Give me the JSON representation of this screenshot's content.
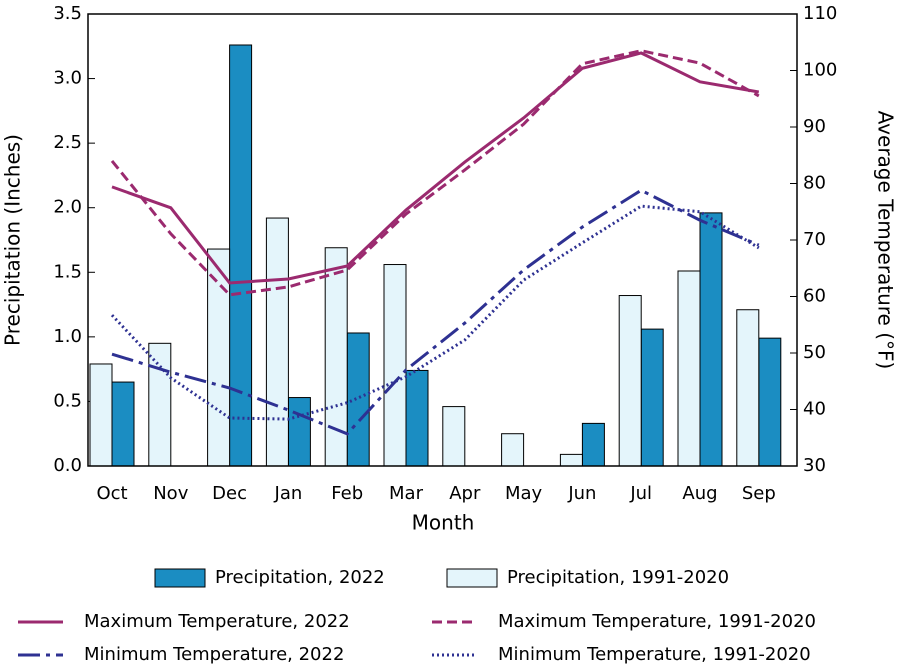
{
  "chart_data": {
    "type": "bar_line",
    "categories": [
      "Oct",
      "Nov",
      "Dec",
      "Jan",
      "Feb",
      "Mar",
      "Apr",
      "May",
      "Jun",
      "Jul",
      "Aug",
      "Sep"
    ],
    "xlabel": "Month",
    "ylabel": "Precipitation (Inches)",
    "y2label": "Average Temperature (°F)",
    "ylim": [
      0,
      3.5
    ],
    "yticks": [
      {
        "value": 0,
        "label": "0.0"
      },
      0.5,
      {
        "value": 1,
        "label": "1.0"
      },
      1.5,
      {
        "value": 2,
        "label": "2.0"
      },
      2.5,
      {
        "value": 3,
        "label": "3.0"
      },
      3.5
    ],
    "y2lim": [
      30,
      110
    ],
    "y2ticks": [
      30,
      40,
      50,
      60,
      70,
      80,
      90,
      100,
      110
    ],
    "series": [
      {
        "name": "Precipitation, 2022",
        "kind": "bar",
        "color": "#1b8dc2",
        "values": [
          0.65,
          0,
          3.26,
          0.53,
          1.03,
          0.74,
          0,
          0,
          0.33,
          1.06,
          1.96,
          0.99
        ]
      },
      {
        "name": "Precipitation, 1991-2020",
        "kind": "bar",
        "color": "#e4f5fb",
        "values": [
          0.79,
          0.95,
          1.68,
          1.92,
          1.69,
          1.56,
          0.46,
          0.25,
          0.09,
          1.32,
          1.51,
          1.21
        ]
      },
      {
        "name": "Maximum Temperature, 2022",
        "kind": "line",
        "axis": "y2",
        "dash": "solid",
        "color": "#9b2a6f",
        "values": [
          79.4,
          75.7,
          62.4,
          63.1,
          65.4,
          75.3,
          83.8,
          91.6,
          100.4,
          103.1,
          98.0,
          96.2
        ]
      },
      {
        "name": "Maximum Temperature, 1991-2020",
        "kind": "line",
        "axis": "y2",
        "dash": "dashed",
        "color": "#9b2a6f",
        "values": [
          84.0,
          71.1,
          60.3,
          61.7,
          64.7,
          74.6,
          82.4,
          90.5,
          101.2,
          103.5,
          101.3,
          95.5
        ]
      },
      {
        "name": "Minimum Temperature, 2022",
        "kind": "line",
        "axis": "y2",
        "dash": "dashdot",
        "color": "#2e3192",
        "values": [
          49.8,
          46.6,
          43.8,
          39.9,
          35.7,
          47.0,
          55.3,
          64.7,
          72.3,
          78.8,
          73.5,
          69.1
        ]
      },
      {
        "name": "Minimum Temperature, 1991-2020",
        "kind": "line",
        "axis": "y2",
        "dash": "dotted",
        "color": "#2e3192",
        "values": [
          56.7,
          45.6,
          38.5,
          38.3,
          41.2,
          45.8,
          52.3,
          62.9,
          69.5,
          76.0,
          75.0,
          68.6
        ]
      }
    ]
  }
}
